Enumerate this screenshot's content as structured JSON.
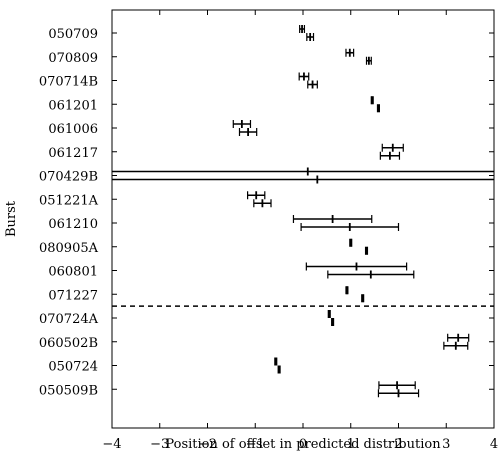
{
  "chart_data": {
    "type": "scatter",
    "xlabel": "Position of offset in predicted distribution",
    "ylabel": "Burst",
    "xlim": [
      -4,
      4
    ],
    "x_ticks": [
      "−4",
      "−3",
      "−2",
      "−1",
      "0",
      "1",
      "2",
      "3",
      "4"
    ],
    "categories": [
      "050709",
      "070809",
      "070714B",
      "061201",
      "061006",
      "061217",
      "070429B",
      "051221A",
      "061210",
      "080905A",
      "060801",
      "071227",
      "070724A",
      "060502B",
      "050724",
      "050509B"
    ],
    "separator_after": "071227",
    "bursts": [
      {
        "burst": "050709",
        "points": [
          {
            "x": -0.02,
            "xerr": 0.05
          },
          {
            "x": 0.15,
            "xerr": 0.07
          }
        ]
      },
      {
        "burst": "070809",
        "points": [
          {
            "x": 0.98,
            "xerr": 0.08
          },
          {
            "x": 1.38,
            "xerr": 0.05
          }
        ]
      },
      {
        "burst": "070714B",
        "points": [
          {
            "x": 0.02,
            "xerr": 0.1
          },
          {
            "x": 0.2,
            "xerr": 0.1
          }
        ]
      },
      {
        "burst": "061201",
        "points": [
          {
            "x": 1.45,
            "xerr": 0.02
          },
          {
            "x": 1.58,
            "xerr": 0.02
          }
        ]
      },
      {
        "burst": "061006",
        "points": [
          {
            "x": -1.28,
            "xerr": 0.18
          },
          {
            "x": -1.15,
            "xerr": 0.18
          }
        ]
      },
      {
        "burst": "061217",
        "points": [
          {
            "x": 1.88,
            "xerr": 0.22
          },
          {
            "x": 1.82,
            "xerr": 0.2
          }
        ]
      },
      {
        "burst": "070429B",
        "points": [
          {
            "x": 0.1,
            "xerr": 4.45
          },
          {
            "x": 0.3,
            "xerr": 4.6
          }
        ]
      },
      {
        "burst": "051221A",
        "points": [
          {
            "x": -0.98,
            "xerr": 0.18
          },
          {
            "x": -0.85,
            "xerr": 0.18
          }
        ]
      },
      {
        "burst": "061210",
        "points": [
          {
            "x": 0.62,
            "xerr": 0.82
          },
          {
            "x": 0.98,
            "xerr": 1.02
          }
        ]
      },
      {
        "burst": "080905A",
        "points": [
          {
            "x": 1.0,
            "xerr": 0.02
          },
          {
            "x": 1.33,
            "xerr": 0.02
          }
        ]
      },
      {
        "burst": "060801",
        "points": [
          {
            "x": 1.12,
            "xerr": 1.05
          },
          {
            "x": 1.42,
            "xerr": 0.9
          }
        ]
      },
      {
        "burst": "071227",
        "points": [
          {
            "x": 0.92,
            "xerr": 0.02
          },
          {
            "x": 1.25,
            "xerr": 0.02
          }
        ]
      },
      {
        "burst": "070724A",
        "points": [
          {
            "x": 0.55,
            "xerr": 0.02
          },
          {
            "x": 0.62,
            "xerr": 0.02
          }
        ]
      },
      {
        "burst": "060502B",
        "points": [
          {
            "x": 3.25,
            "xerr": 0.22
          },
          {
            "x": 3.2,
            "xerr": 0.25
          }
        ]
      },
      {
        "burst": "050724",
        "points": [
          {
            "x": -0.57,
            "xerr": 0.02
          },
          {
            "x": -0.5,
            "xerr": 0.02
          }
        ]
      },
      {
        "burst": "050509B",
        "points": [
          {
            "x": 1.97,
            "xerr": 0.38
          },
          {
            "x": 2.0,
            "xerr": 0.42
          }
        ]
      }
    ]
  }
}
